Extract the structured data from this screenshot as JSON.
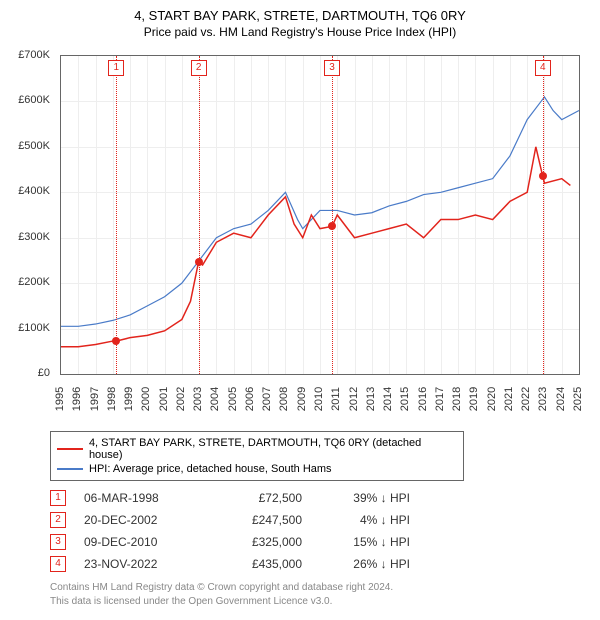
{
  "title": "4, START BAY PARK, STRETE, DARTMOUTH, TQ6 0RY",
  "subtitle": "Price paid vs. HM Land Registry's House Price Index (HPI)",
  "chart": {
    "type": "line",
    "x_axis": {
      "min": 1995,
      "max": 2025,
      "tick_step": 1
    },
    "y_axis": {
      "min": 0,
      "max": 700000,
      "tick_step": 100000,
      "tick_format_prefix": "£",
      "tick_format_suffix": "K",
      "tick_divisor": 1000
    },
    "grid_color": "#eeeeee",
    "border_color": "#666666",
    "background": "#ffffff",
    "series": [
      {
        "name": "property",
        "label": "4, START BAY PARK, STRETE, DARTMOUTH, TQ6 0RY (detached house)",
        "color": "#e2241c",
        "line_width": 1.5,
        "points": [
          [
            1995,
            60000
          ],
          [
            1996,
            60000
          ],
          [
            1997,
            65000
          ],
          [
            1998,
            72500
          ],
          [
            1998.2,
            72500
          ],
          [
            1999,
            80000
          ],
          [
            2000,
            85000
          ],
          [
            2001,
            95000
          ],
          [
            2002,
            120000
          ],
          [
            2002.5,
            160000
          ],
          [
            2002.97,
            247500
          ],
          [
            2003.2,
            240000
          ],
          [
            2004,
            290000
          ],
          [
            2005,
            310000
          ],
          [
            2006,
            300000
          ],
          [
            2007,
            350000
          ],
          [
            2008,
            390000
          ],
          [
            2008.5,
            330000
          ],
          [
            2009,
            300000
          ],
          [
            2009.5,
            350000
          ],
          [
            2010,
            320000
          ],
          [
            2010.7,
            325000
          ],
          [
            2011,
            350000
          ],
          [
            2012,
            300000
          ],
          [
            2013,
            310000
          ],
          [
            2014,
            320000
          ],
          [
            2015,
            330000
          ],
          [
            2016,
            300000
          ],
          [
            2017,
            340000
          ],
          [
            2018,
            340000
          ],
          [
            2019,
            350000
          ],
          [
            2020,
            340000
          ],
          [
            2021,
            380000
          ],
          [
            2022,
            400000
          ],
          [
            2022.5,
            500000
          ],
          [
            2022.9,
            435000
          ],
          [
            2023,
            420000
          ],
          [
            2024,
            430000
          ],
          [
            2024.5,
            415000
          ]
        ]
      },
      {
        "name": "hpi",
        "label": "HPI: Average price, detached house, South Hams",
        "color": "#4a7bc8",
        "line_width": 1.2,
        "points": [
          [
            1995,
            105000
          ],
          [
            1996,
            105000
          ],
          [
            1997,
            110000
          ],
          [
            1998,
            118000
          ],
          [
            1999,
            130000
          ],
          [
            2000,
            150000
          ],
          [
            2001,
            170000
          ],
          [
            2002,
            200000
          ],
          [
            2003,
            250000
          ],
          [
            2004,
            300000
          ],
          [
            2005,
            320000
          ],
          [
            2006,
            330000
          ],
          [
            2007,
            360000
          ],
          [
            2008,
            400000
          ],
          [
            2008.7,
            340000
          ],
          [
            2009,
            320000
          ],
          [
            2010,
            360000
          ],
          [
            2011,
            360000
          ],
          [
            2012,
            350000
          ],
          [
            2013,
            355000
          ],
          [
            2014,
            370000
          ],
          [
            2015,
            380000
          ],
          [
            2016,
            395000
          ],
          [
            2017,
            400000
          ],
          [
            2018,
            410000
          ],
          [
            2019,
            420000
          ],
          [
            2020,
            430000
          ],
          [
            2021,
            480000
          ],
          [
            2022,
            560000
          ],
          [
            2022.8,
            600000
          ],
          [
            2023,
            610000
          ],
          [
            2023.5,
            580000
          ],
          [
            2024,
            560000
          ],
          [
            2025,
            580000
          ]
        ]
      }
    ],
    "events": [
      {
        "n": "1",
        "x": 1998.2,
        "date": "06-MAR-1998",
        "price": "£72,500",
        "diff_pct": "39%",
        "diff_dir": "↓",
        "diff_label": "HPI",
        "color": "#e2241c",
        "marker_y": 72500
      },
      {
        "n": "2",
        "x": 2002.97,
        "date": "20-DEC-2002",
        "price": "£247,500",
        "diff_pct": "4%",
        "diff_dir": "↓",
        "diff_label": "HPI",
        "color": "#e2241c",
        "marker_y": 247500
      },
      {
        "n": "3",
        "x": 2010.7,
        "date": "09-DEC-2010",
        "price": "£325,000",
        "diff_pct": "15%",
        "diff_dir": "↓",
        "diff_label": "HPI",
        "color": "#e2241c",
        "marker_y": 325000
      },
      {
        "n": "4",
        "x": 2022.9,
        "date": "23-NOV-2022",
        "price": "£435,000",
        "diff_pct": "26%",
        "diff_dir": "↓",
        "diff_label": "HPI",
        "color": "#e2241c",
        "marker_y": 435000
      }
    ]
  },
  "footer": {
    "line1": "Contains HM Land Registry data © Crown copyright and database right 2024.",
    "line2": "This data is licensed under the Open Government Licence v3.0."
  }
}
